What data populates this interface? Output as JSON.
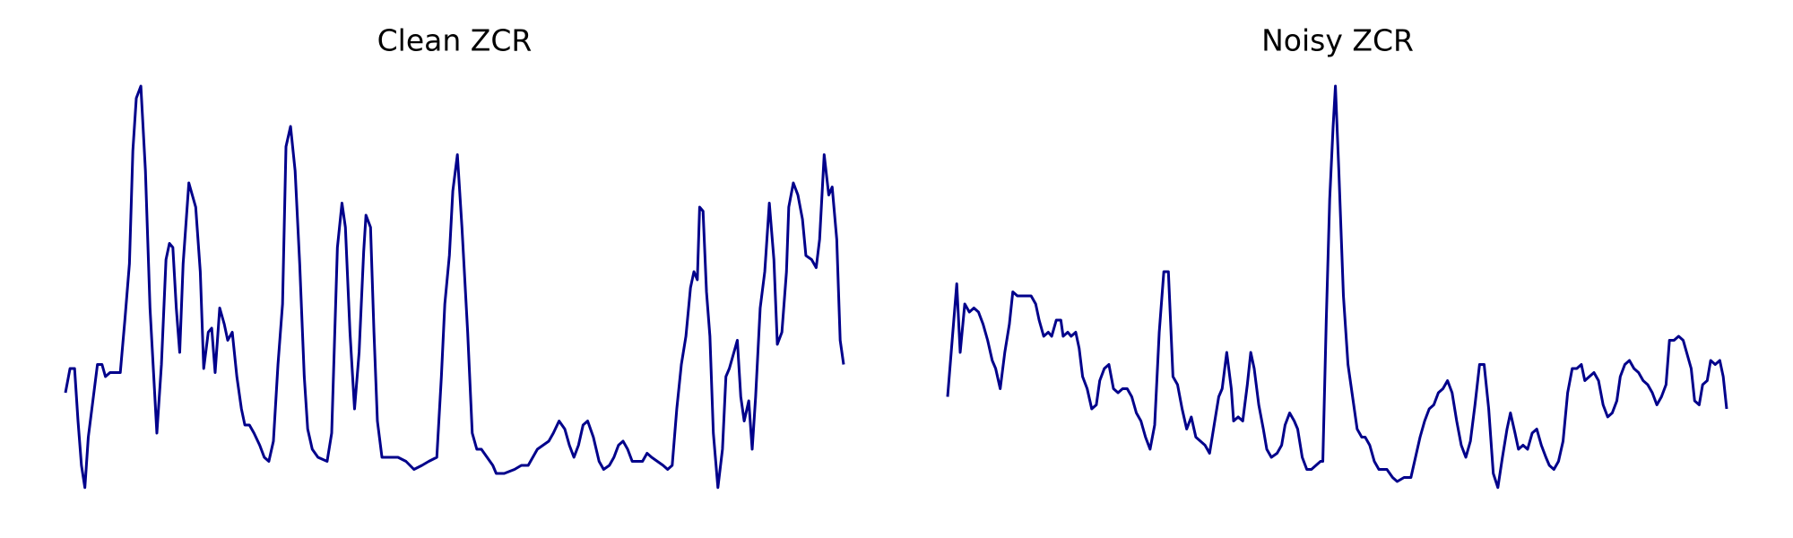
{
  "chart_data": [
    {
      "type": "line",
      "title": "Clean ZCR",
      "color": "#00008b",
      "xlim": [
        0,
        681
      ],
      "ylim": [
        0,
        100
      ],
      "x": [
        0,
        4,
        8,
        11,
        14,
        17,
        20,
        24,
        28,
        32,
        35,
        39,
        43,
        48,
        52,
        56,
        59,
        62,
        66,
        70,
        74,
        80,
        84,
        88,
        91,
        94,
        97,
        100,
        103,
        108,
        114,
        118,
        121,
        125,
        128,
        131,
        135,
        139,
        142,
        146,
        150,
        154,
        157,
        161,
        165,
        170,
        174,
        178,
        182,
        186,
        190,
        193,
        197,
        201,
        205,
        209,
        212,
        216,
        221,
        229,
        233,
        238,
        242,
        245,
        249,
        253,
        257,
        261,
        263,
        267,
        270,
        273,
        277,
        285,
        291,
        298,
        305,
        312,
        318,
        325,
        329,
        332,
        336,
        339,
        343,
        347,
        352,
        356,
        360,
        364,
        369,
        374,
        377,
        384,
        393,
        399,
        405,
        409,
        413,
        418,
        423,
        427,
        432,
        437,
        441,
        445,
        449,
        453,
        457,
        462,
        467,
        471,
        476,
        480,
        484,
        488,
        492,
        496,
        501,
        505,
        509,
        513,
        518,
        523,
        527,
        531,
        535,
        539,
        543,
        547,
        550,
        553,
        555,
        558,
        561,
        564,
        567,
        571,
        575,
        578,
        581,
        585,
        588,
        591,
        594,
        598,
        601,
        604,
        608,
        612,
        616,
        620,
        623,
        627,
        631,
        633,
        637,
        641,
        645,
        648,
        653,
        657,
        660,
        664,
        668,
        671,
        675,
        678,
        681
      ],
      "values": [
        24,
        30,
        30,
        17,
        6,
        0.5,
        13,
        22,
        31,
        31,
        28,
        29,
        29,
        29,
        42,
        56,
        84,
        97,
        100,
        79,
        45,
        14,
        31,
        57,
        61,
        60,
        45,
        34,
        56,
        76,
        70,
        54,
        30,
        39,
        40,
        29,
        45,
        41,
        37,
        39,
        28,
        20,
        16,
        16,
        14,
        11,
        8,
        7,
        12,
        31,
        46,
        85,
        90,
        79,
        56,
        28,
        15,
        10,
        8,
        7,
        14,
        60,
        71,
        65,
        39,
        20,
        34,
        59,
        68,
        65,
        39,
        17,
        8,
        8,
        8,
        7,
        5,
        6,
        7,
        8,
        28,
        46,
        58,
        74,
        83,
        65,
        39,
        14,
        10,
        10,
        8,
        6,
        4,
        4,
        5,
        6,
        6,
        8,
        10,
        11,
        12,
        14,
        17,
        15,
        11,
        8,
        11,
        16,
        17,
        13,
        7,
        5,
        6,
        8,
        11,
        12,
        10,
        7,
        7,
        7,
        9,
        8,
        7,
        6,
        5,
        6,
        20,
        31,
        38,
        50,
        54,
        52,
        70,
        69,
        49,
        38,
        14,
        0.5,
        10,
        28,
        30,
        34,
        37,
        23,
        17,
        22,
        10,
        23,
        45,
        54,
        71,
        57,
        36,
        39,
        54,
        70,
        76,
        73,
        67,
        58,
        57,
        55,
        62,
        83,
        73,
        75,
        62,
        37,
        31
      ]
    },
    {
      "type": "line",
      "title": "Noisy ZCR",
      "color": "#00008b",
      "xlim": [
        0,
        681
      ],
      "ylim": [
        0,
        100
      ],
      "x": [
        0,
        4,
        8,
        11,
        15,
        19,
        23,
        27,
        31,
        35,
        39,
        42,
        46,
        50,
        54,
        57,
        61,
        65,
        69,
        73,
        77,
        80,
        84,
        88,
        91,
        95,
        99,
        101,
        105,
        108,
        112,
        115,
        118,
        122,
        126,
        130,
        133,
        137,
        141,
        145,
        149,
        153,
        157,
        161,
        165,
        169,
        173,
        177,
        181,
        185,
        189,
        193,
        197,
        201,
        205,
        209,
        213,
        217,
        221,
        225,
        229,
        233,
        237,
        240,
        244,
        248,
        250,
        254,
        258,
        262,
        265,
        268,
        272,
        276,
        279,
        283,
        288,
        292,
        295,
        299,
        303,
        306,
        310,
        314,
        318,
        322,
        326,
        328,
        331,
        334,
        337,
        339,
        342,
        346,
        350,
        354,
        358,
        362,
        365,
        369,
        373,
        377,
        384,
        389,
        393,
        399,
        405,
        409,
        413,
        417,
        421,
        425,
        429,
        433,
        437,
        441,
        445,
        449,
        453,
        457,
        461,
        465,
        469,
        473,
        477,
        481,
        485,
        489,
        492,
        496,
        499,
        503,
        507,
        511,
        515,
        519,
        523,
        526,
        530,
        534,
        538,
        542,
        546,
        550,
        554,
        557,
        561,
        565,
        569,
        573,
        577,
        581,
        585,
        588,
        592,
        596,
        600,
        604,
        608,
        612,
        616,
        620,
        624,
        628,
        631,
        635,
        639,
        643,
        646,
        650,
        653,
        657,
        660,
        664,
        667,
        671,
        675,
        678,
        681
      ],
      "values": [
        23,
        37,
        51,
        34,
        46,
        44,
        45,
        44,
        41,
        37,
        32,
        30,
        25,
        34,
        41,
        49,
        48,
        48,
        48,
        48,
        46,
        42,
        38,
        39,
        38,
        42,
        42,
        38,
        39,
        38,
        39,
        35,
        28,
        25,
        20,
        21,
        27,
        30,
        31,
        25,
        24,
        25,
        25,
        23,
        19,
        17,
        13,
        10,
        16,
        39,
        54,
        54,
        28,
        26,
        20,
        15,
        18,
        13,
        12,
        11,
        9,
        16,
        23,
        25,
        34,
        25,
        17,
        18,
        17,
        26,
        34,
        30,
        21,
        15,
        10,
        8,
        9,
        11,
        16,
        19,
        17,
        15,
        8,
        5,
        5,
        6,
        7,
        7,
        42,
        72,
        90,
        100,
        79,
        48,
        31,
        23,
        15,
        13,
        13,
        11,
        7,
        5,
        5,
        3,
        2,
        3,
        3,
        8,
        13,
        17,
        20,
        21,
        24,
        25,
        27,
        24,
        17,
        11,
        8,
        12,
        21,
        31,
        31,
        20,
        4,
        0.5,
        8,
        15,
        19,
        14,
        10,
        11,
        10,
        14,
        15,
        11,
        8,
        6,
        5,
        7,
        12,
        24,
        30,
        30,
        31,
        27,
        28,
        29,
        27,
        21,
        18,
        19,
        22,
        28,
        31,
        32,
        30,
        29,
        27,
        26,
        24,
        21,
        23,
        26,
        37,
        37,
        38,
        37,
        34,
        30,
        22,
        21,
        26,
        27,
        32,
        31,
        32,
        28,
        20
      ]
    }
  ]
}
